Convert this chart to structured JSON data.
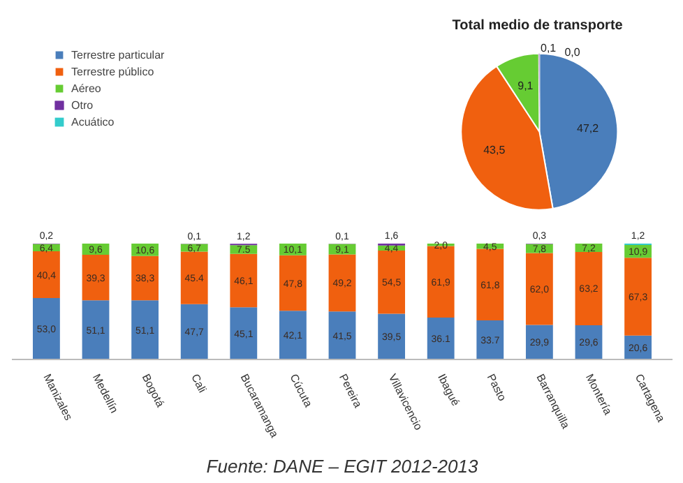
{
  "chart_data": [
    {
      "type": "bar",
      "stacked": true,
      "legend": "top left",
      "grid": false,
      "tick_labels": "x",
      "categories": [
        "Manizales",
        "Medellín",
        "Bogotá",
        "Cali",
        "Bucaramanga",
        "Cúcuta",
        "Pereira",
        "Villavicencio",
        "Ibagué",
        "Pasto",
        "Barranquilla",
        "Montería",
        "Cartagena"
      ],
      "series": [
        {
          "name": "Terrestre particular",
          "color": "#4a7ebb",
          "values": [
            53.0,
            51.1,
            51.1,
            47.7,
            45.1,
            42.1,
            41.5,
            39.5,
            36.1,
            33.7,
            29.9,
            29.6,
            20.6
          ],
          "value_labels": [
            "53,0",
            "51,1",
            "51,1",
            "47,7",
            "45,1",
            "42,1",
            "41,5",
            "39,5",
            "36.1",
            "33.7",
            "29,9",
            "29,6",
            "20,6"
          ]
        },
        {
          "name": "Terrestre público",
          "color": "#f0600f",
          "values": [
            40.4,
            39.3,
            38.3,
            45.4,
            46.1,
            47.8,
            49.2,
            54.5,
            61.9,
            61.8,
            62.0,
            63.2,
            67.3
          ],
          "value_labels": [
            "40,4",
            "39,3",
            "38,3",
            "45.4",
            "46,1",
            "47,8",
            "49,2",
            "54,5",
            "61,9",
            "61,8",
            "62,0",
            "63,2",
            "67,3"
          ]
        },
        {
          "name": "Aéreo",
          "color": "#66cc33",
          "values": [
            6.4,
            9.6,
            10.6,
            6.7,
            7.5,
            10.1,
            9.1,
            4.4,
            2.0,
            4.5,
            7.8,
            7.2,
            10.9
          ],
          "value_labels": [
            "6,4",
            "9,6",
            "10,6",
            "6,7",
            "7.5",
            "10,1",
            "9,1",
            "4,4",
            "2,0",
            "4,5",
            "7,8",
            "7,2",
            "10,9"
          ]
        },
        {
          "name": "Otro",
          "color": "#7030a0",
          "values": [
            0.2,
            null,
            null,
            0.1,
            1.2,
            null,
            0.1,
            1.6,
            null,
            null,
            0.3,
            null,
            null
          ],
          "value_labels": [
            "0,2",
            null,
            null,
            "0,1",
            "1,2",
            null,
            "0,1",
            "1,6",
            null,
            null,
            "0,3",
            null,
            null
          ]
        },
        {
          "name": "Acuático",
          "color": "#33cccc",
          "values": [
            null,
            null,
            null,
            null,
            null,
            null,
            null,
            null,
            null,
            null,
            null,
            null,
            1.2
          ],
          "value_labels": [
            null,
            null,
            null,
            null,
            null,
            null,
            null,
            null,
            null,
            null,
            null,
            null,
            "1,2"
          ]
        }
      ],
      "annotations": [
        "Fuente: DANE – EGIT 2012-2013"
      ]
    },
    {
      "type": "pie",
      "title": "Total  medio de transporte",
      "values": [
        47.2,
        43.5,
        9.1,
        0.1,
        0.0
      ],
      "colors": [
        "#4a7ebb",
        "#f0600f",
        "#66cc33",
        "#7030a0",
        "#33cccc"
      ],
      "value_labels": [
        "47,2",
        "43,5",
        "9,1",
        "0,1",
        "0,0"
      ]
    }
  ]
}
